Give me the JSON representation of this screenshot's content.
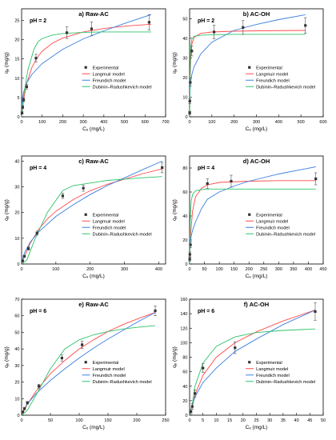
{
  "figure": {
    "background": "#ffffff",
    "series_colors": {
      "Experimental": "#333333",
      "Langmuir model": "#ff4b4b",
      "Freundich model": "#3d7fe0",
      "Dubinin–Radushkevich model": "#2ec46a"
    }
  },
  "chart_data": [
    {
      "type": "line",
      "panel_label": "a) Raw-AC",
      "annotation": "pH = 2",
      "xlabel": "Cₑ (mg/L)",
      "ylabel": "qₑ (mg/g)",
      "xlim": [
        0,
        700
      ],
      "ylim": [
        0,
        28
      ],
      "xticks": [
        0,
        100,
        200,
        300,
        400,
        500,
        600,
        700
      ],
      "yticks": [
        0,
        5,
        10,
        15,
        20,
        25
      ],
      "legend": {
        "position": "bottom-right",
        "entries": [
          "Experimental",
          "Langmuir model",
          "Freundich model",
          "Dubinin–Radushkevich model"
        ]
      },
      "series": [
        {
          "name": "Experimental",
          "kind": "scatter",
          "x": [
            2,
            5,
            10,
            25,
            70,
            220,
            340,
            620
          ],
          "y": [
            1,
            2.5,
            4.4,
            7.8,
            15.2,
            21.8,
            22.8,
            24.5
          ],
          "err": [
            0.3,
            0.4,
            0.5,
            0.6,
            1.0,
            1.5,
            1.8,
            2.0
          ]
        },
        {
          "name": "Langmuir model",
          "kind": "line",
          "x": [
            0,
            10,
            25,
            50,
            75,
            100,
            150,
            200,
            300,
            400,
            500,
            630
          ],
          "y": [
            0,
            4.5,
            8.7,
            12.8,
            15.3,
            17.0,
            19.1,
            20.4,
            22.0,
            22.9,
            23.5,
            24.0
          ]
        },
        {
          "name": "Freundich model",
          "kind": "line",
          "x": [
            0.5,
            5,
            10,
            25,
            50,
            100,
            200,
            300,
            400,
            500,
            630
          ],
          "y": [
            2.4,
            5.2,
            6.5,
            8.8,
            11.0,
            13.8,
            17.5,
            20.2,
            22.3,
            24.2,
            26.5
          ]
        },
        {
          "name": "Dubinin–Radushkevich model",
          "kind": "line",
          "x": [
            0,
            10,
            30,
            60,
            80,
            100,
            150,
            200,
            300,
            400,
            500,
            630
          ],
          "y": [
            0,
            5.5,
            12.0,
            17.5,
            19.5,
            20.3,
            21.2,
            21.6,
            21.9,
            22.0,
            22.0,
            22.0
          ]
        }
      ]
    },
    {
      "type": "line",
      "panel_label": "b) AC-OH",
      "annotation": "pH = 2",
      "xlabel": "Cₑ (mg/L)",
      "ylabel": "qₑ (mg/g)",
      "xlim": [
        0,
        600
      ],
      "ylim": [
        0,
        55
      ],
      "xticks": [
        0,
        100,
        200,
        300,
        400,
        500,
        600
      ],
      "yticks": [
        0,
        10,
        20,
        30,
        40,
        50
      ],
      "legend": {
        "position": "bottom-right",
        "entries": [
          "Experimental",
          "Langmuir model",
          "Freundich model",
          "Dubinin–Radushkevich model"
        ]
      },
      "series": [
        {
          "name": "Experimental",
          "kind": "scatter",
          "x": [
            0.5,
            1,
            3,
            10,
            110,
            240,
            520
          ],
          "y": [
            2,
            8,
            17.5,
            33.5,
            43.2,
            45.5,
            46.5
          ],
          "err": [
            0.8,
            1.2,
            1.8,
            2.5,
            3.5,
            3.5,
            4.0
          ]
        },
        {
          "name": "Langmuir model",
          "kind": "line",
          "x": [
            0,
            2,
            5,
            10,
            20,
            50,
            100,
            200,
            300,
            520
          ],
          "y": [
            0,
            18,
            30,
            37,
            40.5,
            42.5,
            43.2,
            43.6,
            43.8,
            44.0
          ]
        },
        {
          "name": "Freundich model",
          "kind": "line",
          "x": [
            0.5,
            2,
            5,
            10,
            20,
            50,
            100,
            200,
            300,
            400,
            520
          ],
          "y": [
            10,
            14,
            18,
            21.5,
            25.5,
            32,
            38,
            44,
            47,
            49.5,
            52
          ]
        },
        {
          "name": "Dubinin–Radushkevich model",
          "kind": "line",
          "x": [
            0,
            2,
            5,
            10,
            20,
            50,
            100,
            200,
            300,
            520
          ],
          "y": [
            0,
            22,
            35,
            39.5,
            41,
            41.5,
            41.8,
            42,
            42,
            42
          ]
        }
      ]
    },
    {
      "type": "line",
      "panel_label": "c) Raw-AC",
      "annotation": "pH = 4",
      "xlabel": "Cₑ (mg/L)",
      "ylabel": "qₑ (mg/g)",
      "xlim": [
        0,
        420
      ],
      "ylim": [
        0,
        42
      ],
      "xticks": [
        0,
        100,
        200,
        300,
        400
      ],
      "yticks": [
        0,
        10,
        20,
        30,
        40
      ],
      "legend": {
        "position": "bottom-right",
        "entries": [
          "Experimental",
          "Langmuir model",
          "Freundich model",
          "Dubinin–Radushkevich model"
        ]
      },
      "series": [
        {
          "name": "Experimental",
          "kind": "scatter",
          "x": [
            3,
            8,
            20,
            45,
            120,
            180,
            410
          ],
          "y": [
            1.2,
            3,
            6,
            12,
            26.5,
            29.5,
            37.5
          ],
          "err": [
            0.3,
            0.4,
            0.6,
            0.8,
            1.0,
            1.2,
            2.0
          ]
        },
        {
          "name": "Langmuir model",
          "kind": "line",
          "x": [
            0,
            10,
            25,
            50,
            75,
            100,
            150,
            200,
            250,
            300,
            350,
            410
          ],
          "y": [
            0,
            3.5,
            8,
            13.5,
            17.5,
            20.5,
            25,
            28.5,
            31,
            33,
            35,
            37
          ]
        },
        {
          "name": "Freundich model",
          "kind": "line",
          "x": [
            0.5,
            5,
            10,
            25,
            50,
            100,
            150,
            200,
            250,
            300,
            350,
            410
          ],
          "y": [
            0.5,
            3,
            4.8,
            8.5,
            12.5,
            18.5,
            23,
            27,
            30.5,
            33.5,
            36.5,
            40
          ]
        },
        {
          "name": "Dubinin–Radushkevich model",
          "kind": "line",
          "x": [
            0,
            15,
            40,
            75,
            120,
            150,
            200,
            250,
            300,
            350,
            410
          ],
          "y": [
            0,
            1.5,
            10,
            20,
            28.5,
            30.5,
            31.5,
            32.5,
            33,
            33.5,
            34
          ]
        }
      ]
    },
    {
      "type": "line",
      "panel_label": "d) AC-OH",
      "annotation": "pH = 4",
      "xlabel": "Cₑ (mg/L)",
      "ylabel": "qₑ (mg/g)",
      "xlim": [
        0,
        450
      ],
      "ylim": [
        0,
        90
      ],
      "xticks": [
        0,
        50,
        100,
        150,
        200,
        250,
        300,
        350,
        400,
        450
      ],
      "yticks": [
        0,
        20,
        40,
        60,
        80
      ],
      "legend": {
        "position": "bottom-right",
        "entries": [
          "Experimental",
          "Langmuir model",
          "Freundich model",
          "Dubinin–Radushkevich model"
        ]
      },
      "series": [
        {
          "name": "Experimental",
          "kind": "scatter",
          "x": [
            0.5,
            1,
            3,
            60,
            140,
            425
          ],
          "y": [
            4,
            8,
            16,
            67,
            69,
            71
          ],
          "err": [
            1.5,
            2.0,
            2.5,
            4.0,
            5.0,
            5.0
          ]
        },
        {
          "name": "Langmuir model",
          "kind": "line",
          "x": [
            0,
            2,
            5,
            10,
            20,
            40,
            60,
            100,
            200,
            300,
            425
          ],
          "y": [
            0,
            18,
            30,
            44,
            56,
            63,
            66,
            68,
            69,
            69.5,
            69.5
          ]
        },
        {
          "name": "Freundich model",
          "kind": "line",
          "x": [
            0.5,
            5,
            10,
            20,
            40,
            60,
            100,
            150,
            200,
            300,
            425
          ],
          "y": [
            12,
            23,
            28,
            35,
            46,
            54,
            60,
            65,
            69,
            75,
            81
          ]
        },
        {
          "name": "Dubinin–Radushkevich model",
          "kind": "line",
          "x": [
            0,
            2,
            5,
            10,
            20,
            40,
            60,
            100,
            200,
            425
          ],
          "y": [
            0,
            35,
            52,
            58,
            61,
            62,
            62.5,
            62.5,
            62.5,
            62.5
          ]
        }
      ]
    },
    {
      "type": "line",
      "panel_label": "e) Raw-AC",
      "annotation": "pH = 6",
      "xlabel": "Cₑ (mg/L)",
      "ylabel": "qₑ (mg/g)",
      "xlim": [
        0,
        250
      ],
      "ylim": [
        0,
        70
      ],
      "xticks": [
        0,
        50,
        100,
        150,
        200,
        250
      ],
      "yticks": [
        0,
        10,
        20,
        30,
        40,
        50,
        60,
        70
      ],
      "legend": {
        "position": "bottom-right",
        "entries": [
          "Experimental",
          "Langmuir model",
          "Freundich model",
          "Dubinin–Radushkevich model"
        ]
      },
      "series": [
        {
          "name": "Experimental",
          "kind": "scatter",
          "x": [
            2,
            5,
            10,
            30,
            70,
            105,
            232
          ],
          "y": [
            2,
            4,
            7.5,
            17.5,
            34.5,
            42.5,
            63
          ],
          "err": [
            0.5,
            0.6,
            0.8,
            1.2,
            1.8,
            2.2,
            3.0
          ]
        },
        {
          "name": "Langmuir model",
          "kind": "line",
          "x": [
            0,
            10,
            25,
            50,
            75,
            100,
            125,
            150,
            175,
            200,
            232
          ],
          "y": [
            0,
            6.5,
            14.5,
            25,
            33,
            40,
            45.5,
            50.5,
            54.5,
            58,
            62
          ]
        },
        {
          "name": "Freundich model",
          "kind": "line",
          "x": [
            0.5,
            5,
            10,
            25,
            50,
            75,
            100,
            125,
            150,
            175,
            200,
            232
          ],
          "y": [
            1,
            4.2,
            6.8,
            13,
            21,
            28,
            34.5,
            40.5,
            46,
            51,
            56,
            62
          ]
        },
        {
          "name": "Dubinin–Radushkevich model",
          "kind": "line",
          "x": [
            0,
            10,
            25,
            50,
            75,
            100,
            125,
            150,
            175,
            200,
            232
          ],
          "y": [
            0,
            3,
            12,
            28,
            40,
            45.5,
            48.5,
            50.5,
            52,
            53,
            54
          ]
        }
      ]
    },
    {
      "type": "line",
      "panel_label": "f) AC-OH",
      "annotation": "pH = 6",
      "xlabel": "Cₑ (mg/L)",
      "ylabel": "qₑ (mg/g)",
      "xlim": [
        0,
        50
      ],
      "ylim": [
        0,
        160
      ],
      "xticks": [
        0,
        5,
        10,
        15,
        20,
        25,
        30,
        35,
        40,
        45,
        50
      ],
      "yticks": [
        0,
        20,
        40,
        60,
        80,
        100,
        120,
        140,
        160
      ],
      "legend": {
        "position": "bottom-right",
        "entries": [
          "Experimental",
          "Langmuir model",
          "Freundich model",
          "Dubinin–Radushkevich model"
        ]
      },
      "series": [
        {
          "name": "Experimental",
          "kind": "scatter",
          "x": [
            0.5,
            1,
            2,
            5,
            17,
            47
          ],
          "y": [
            5,
            12,
            30,
            65,
            93,
            143
          ],
          "err": [
            3,
            4,
            5,
            6,
            8,
            12
          ]
        },
        {
          "name": "Langmuir model",
          "kind": "line",
          "x": [
            0,
            2,
            5,
            10,
            17,
            25,
            35,
            47
          ],
          "y": [
            0,
            28,
            55,
            80,
            100,
            115,
            130,
            145
          ]
        },
        {
          "name": "Freundich model",
          "kind": "line",
          "x": [
            0.5,
            2,
            5,
            10,
            17,
            25,
            35,
            47
          ],
          "y": [
            8,
            25,
            45,
            65,
            88,
            105,
            125,
            145
          ]
        },
        {
          "name": "Dubinin–Radushkevich model",
          "kind": "line",
          "x": [
            0,
            1,
            2,
            5,
            10,
            17,
            25,
            35,
            47
          ],
          "y": [
            0,
            15,
            40,
            72,
            95,
            108,
            114,
            117,
            119
          ]
        }
      ]
    }
  ]
}
